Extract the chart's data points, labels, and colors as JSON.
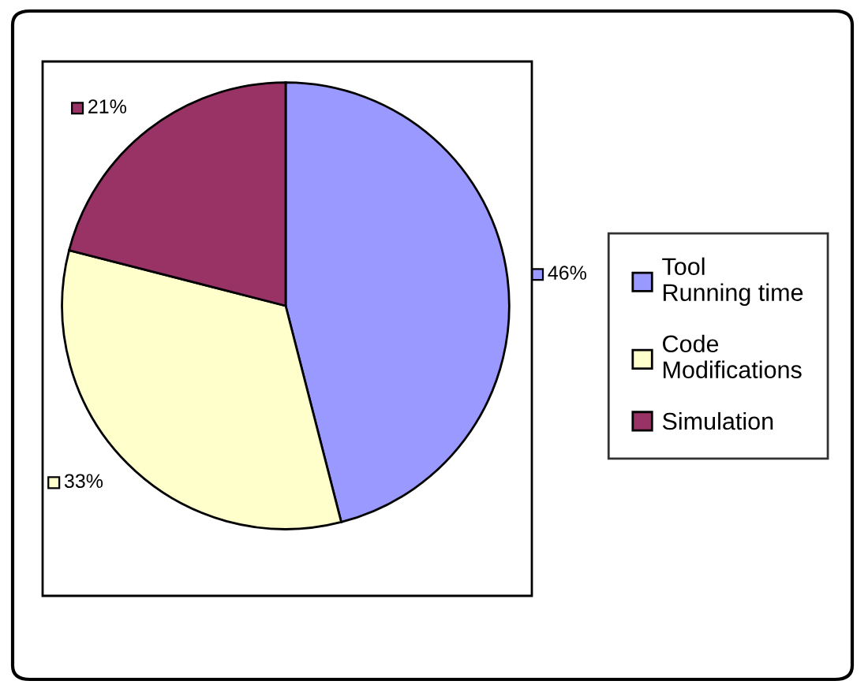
{
  "chart_data": {
    "type": "pie",
    "categories": [
      "Tool\nRunning time",
      "Code\nModifications",
      "Simulation"
    ],
    "values": [
      46,
      33,
      21
    ],
    "colors": [
      "#9999ff",
      "#ffffcc",
      "#993366"
    ],
    "value_labels": [
      "46%",
      "33%",
      "21%"
    ],
    "legend": "right"
  }
}
